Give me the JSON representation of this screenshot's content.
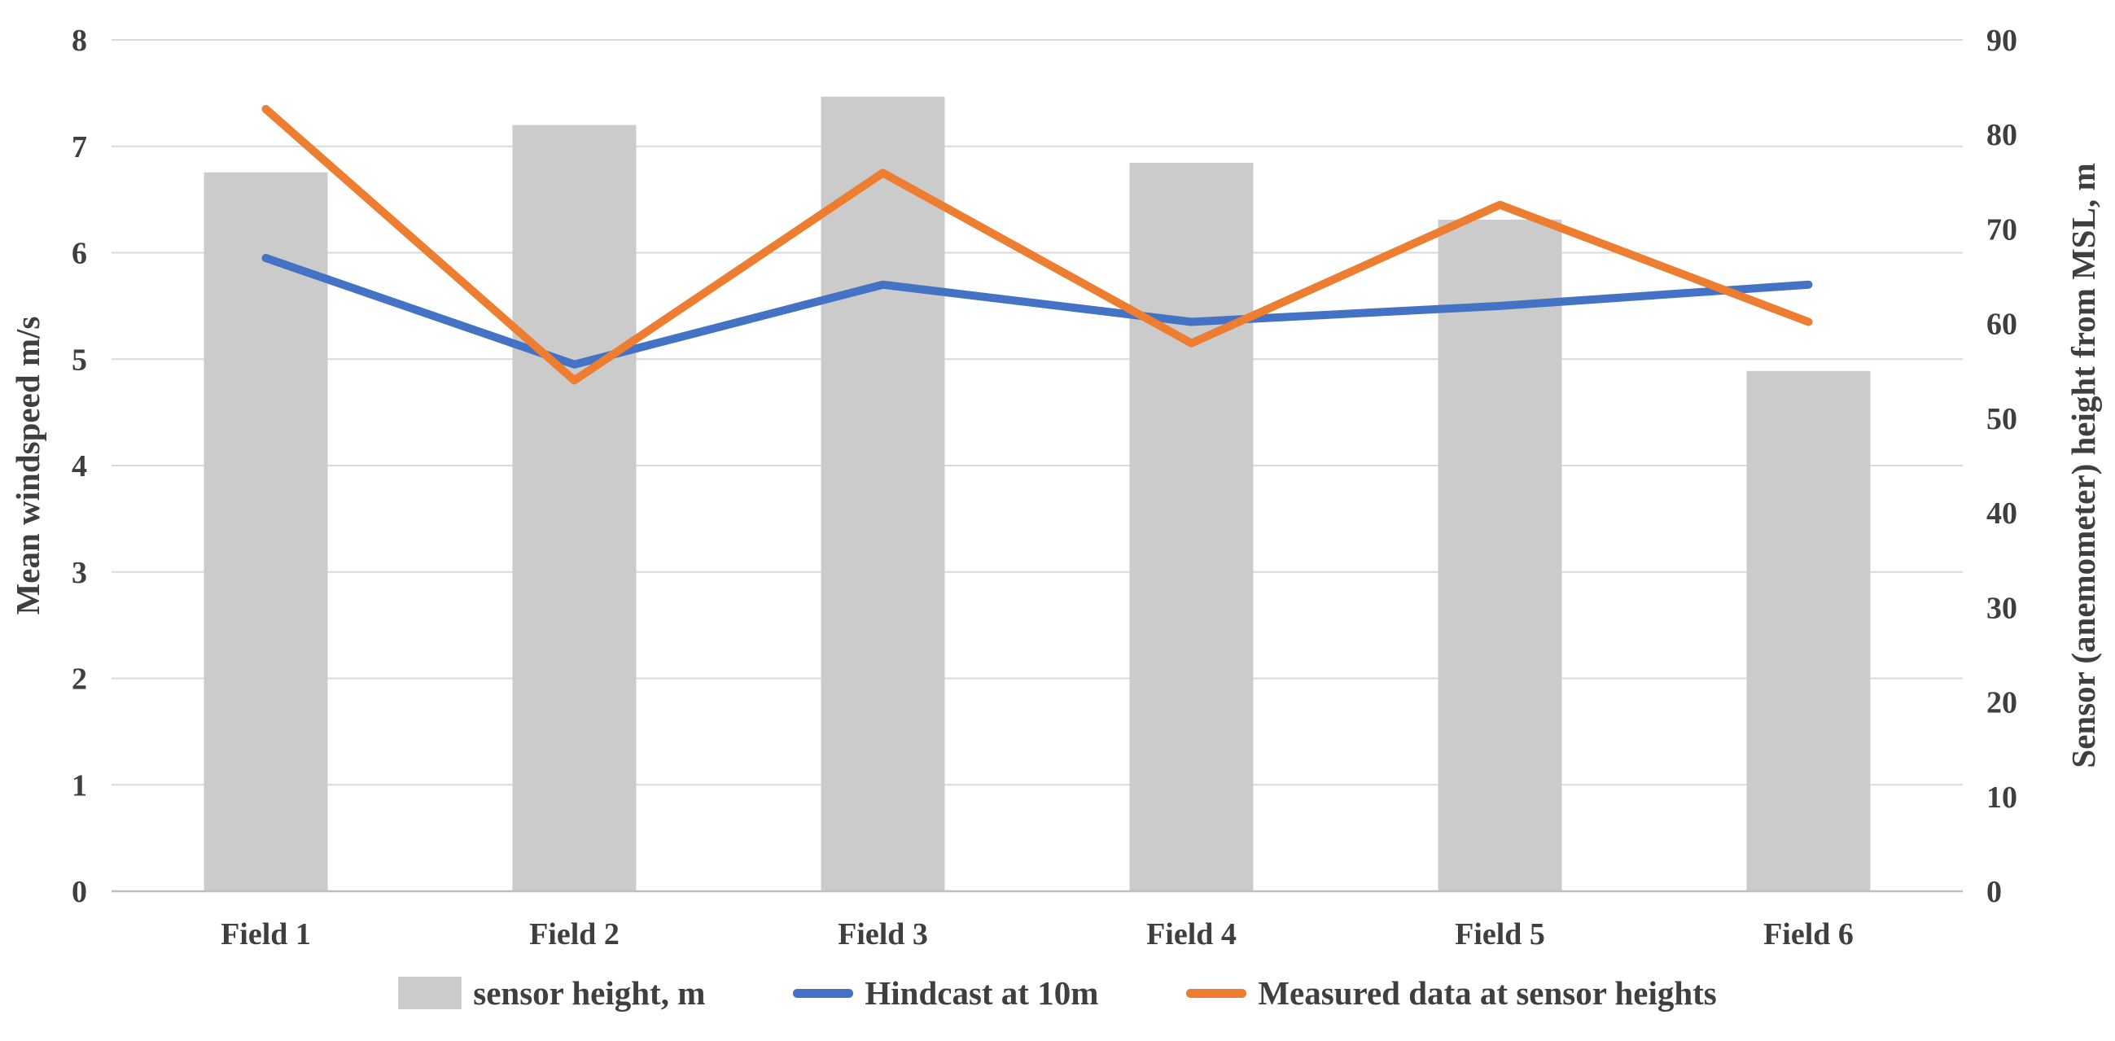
{
  "colors": {
    "background": "#FFFFFF",
    "grid_line": "#D9D9D9",
    "axis_line": "#BFBFBF",
    "text": "#3F3F3F",
    "bar_fill": "#CBCBCB",
    "hindcast_line": "#4472C4",
    "measured_line": "#ED7D31"
  },
  "chart_data": {
    "type": "combo bar + line, dual y-axis",
    "categories": [
      "Field 1",
      "Field 2",
      "Field 3",
      "Field 4",
      "Field 5",
      "Field 6"
    ],
    "series": [
      {
        "name": "sensor height, m",
        "type": "bar",
        "axis": "right",
        "color": "#CBCBCB",
        "values": [
          76,
          81,
          84,
          77,
          71,
          55
        ]
      },
      {
        "name": "Hindcast at 10m",
        "type": "line",
        "axis": "left",
        "color": "#4472C4",
        "values": [
          5.95,
          4.95,
          5.7,
          5.35,
          5.5,
          5.7
        ]
      },
      {
        "name": "Measured data at sensor heights",
        "type": "line",
        "axis": "left",
        "color": "#ED7D31",
        "values": [
          7.35,
          4.8,
          6.75,
          5.15,
          6.45,
          5.35
        ]
      }
    ],
    "left_axis": {
      "title": "Mean windspeed m/s",
      "range": [
        0,
        8
      ],
      "tick_step": 1,
      "ticks": [
        "0",
        "1",
        "2",
        "3",
        "4",
        "5",
        "6",
        "7",
        "8"
      ]
    },
    "right_axis": {
      "title": "Sensor (anemometer) height from MSL, m",
      "range": [
        0,
        90
      ],
      "tick_step": 10,
      "ticks": [
        "0",
        "10",
        "20",
        "30",
        "40",
        "50",
        "60",
        "70",
        "80",
        "90"
      ]
    },
    "grid": "horizontal",
    "legend_position": "bottom"
  }
}
